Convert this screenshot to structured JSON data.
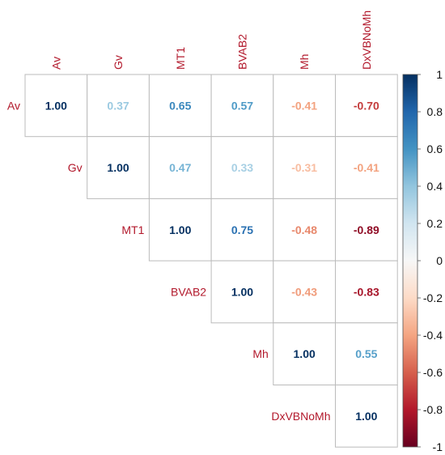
{
  "chart_data": {
    "type": "heatmap",
    "variables": [
      "Av",
      "Gv",
      "MT1",
      "BVAB2",
      "Mh",
      "DxVBNoMh"
    ],
    "matrix": [
      [
        1.0,
        0.37,
        0.65,
        0.57,
        -0.41,
        -0.7
      ],
      [
        null,
        1.0,
        0.47,
        0.33,
        -0.31,
        -0.41
      ],
      [
        null,
        null,
        1.0,
        0.75,
        -0.48,
        -0.89
      ],
      [
        null,
        null,
        null,
        1.0,
        -0.43,
        -0.83
      ],
      [
        null,
        null,
        null,
        null,
        1.0,
        0.55
      ],
      [
        null,
        null,
        null,
        null,
        null,
        1.0
      ]
    ],
    "layout": "upper-triangular with variable labels on diagonal",
    "legend": {
      "position": "right",
      "ticks": [
        "1",
        "0.8",
        "0.6",
        "0.4",
        "0.2",
        "0",
        "-0.2",
        "-0.4",
        "-0.6",
        "-0.8",
        "-1"
      ],
      "range": [
        -1,
        1
      ]
    },
    "colors": {
      "negative_end": "#67001f",
      "positive_end": "#053061",
      "label_color": "#b2182b",
      "grid": "#bbbbbb"
    }
  }
}
